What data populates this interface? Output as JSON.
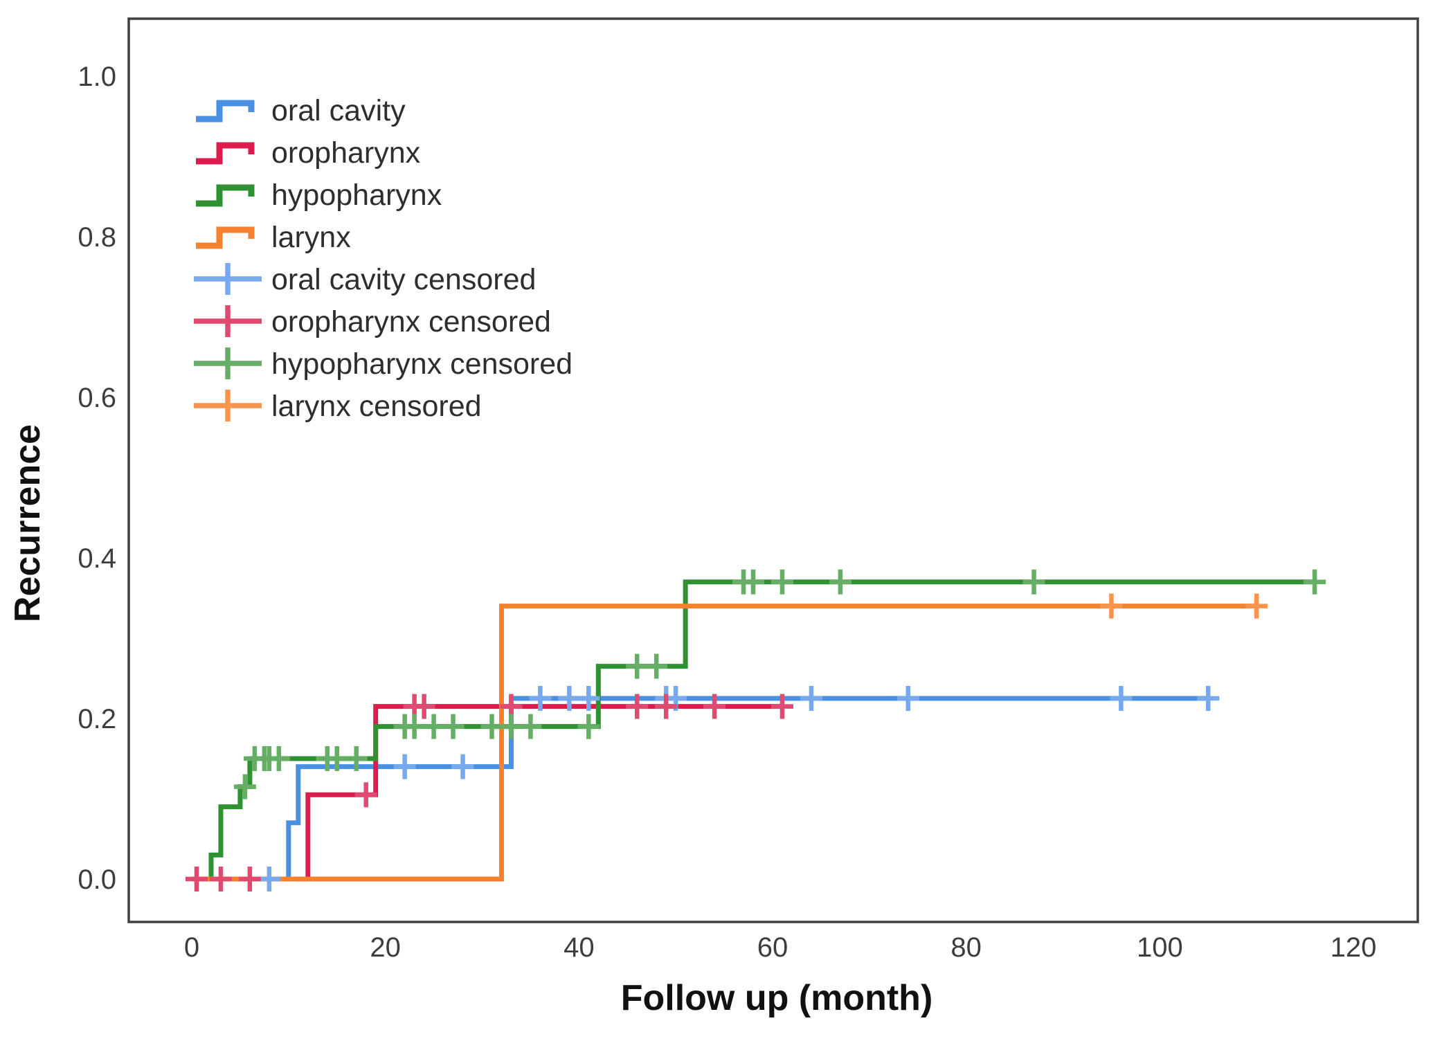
{
  "figure": {
    "background": "#ffffff",
    "frame_color": "#3f3f3f",
    "tick_label_color": "#3d3d3d",
    "legend_text_color": "#2e2e2e"
  },
  "chart_data": {
    "type": "line",
    "subtype": "kaplan-meier-cumulative-incidence-steps",
    "title": "",
    "xlabel": "Follow up (month)",
    "ylabel": "Recurrence",
    "xlim": [
      0,
      120
    ],
    "ylim": [
      0.0,
      1.0
    ],
    "xticks": [
      "0",
      "20",
      "40",
      "60",
      "80",
      "100",
      "120"
    ],
    "yticks": [
      "0.0",
      "0.2",
      "0.4",
      "0.6",
      "0.8",
      "1.0"
    ],
    "ytick_values": [
      0.0,
      0.2,
      0.4,
      0.6,
      0.8,
      1.0
    ],
    "xtick_values": [
      0,
      20,
      40,
      60,
      80,
      100,
      120
    ],
    "grid": false,
    "legend_position": "upper-left-inside",
    "series": [
      {
        "name": "oral cavity",
        "color": "#4a90e2",
        "censor_color": "#76a9ee",
        "steps": [
          [
            0,
            0
          ],
          [
            10,
            0.07
          ],
          [
            11,
            0.14
          ],
          [
            33,
            0.225
          ]
        ],
        "end_month": 105,
        "censored": [
          [
            8,
            0
          ],
          [
            22,
            0.14
          ],
          [
            28,
            0.14
          ],
          [
            36,
            0.225
          ],
          [
            39,
            0.225
          ],
          [
            41,
            0.225
          ],
          [
            49,
            0.225
          ],
          [
            50,
            0.225
          ],
          [
            64,
            0.225
          ],
          [
            74,
            0.225
          ],
          [
            96,
            0.225
          ],
          [
            105,
            0.225
          ]
        ]
      },
      {
        "name": "oropharynx",
        "color": "#dd1c4d",
        "censor_color": "#e04a70",
        "steps": [
          [
            0,
            0
          ],
          [
            12,
            0.105
          ],
          [
            19,
            0.215
          ]
        ],
        "end_month": 61,
        "censored": [
          [
            0.5,
            0
          ],
          [
            3,
            0
          ],
          [
            6,
            0
          ],
          [
            18,
            0.105
          ],
          [
            23,
            0.215
          ],
          [
            24,
            0.215
          ],
          [
            33,
            0.215
          ],
          [
            46,
            0.215
          ],
          [
            49,
            0.215
          ],
          [
            54,
            0.215
          ],
          [
            61,
            0.215
          ]
        ]
      },
      {
        "name": "hypopharynx",
        "color": "#2f9132",
        "censor_color": "#66ad66",
        "steps": [
          [
            0,
            0
          ],
          [
            2,
            0.03
          ],
          [
            3,
            0.09
          ],
          [
            5,
            0.115
          ],
          [
            6,
            0.15
          ],
          [
            19,
            0.19
          ],
          [
            42,
            0.265
          ],
          [
            51,
            0.37
          ]
        ],
        "end_month": 116,
        "censored": [
          [
            5.5,
            0.115
          ],
          [
            6.5,
            0.15
          ],
          [
            7.5,
            0.15
          ],
          [
            8,
            0.15
          ],
          [
            9,
            0.15
          ],
          [
            14,
            0.15
          ],
          [
            15,
            0.15
          ],
          [
            17,
            0.15
          ],
          [
            22,
            0.19
          ],
          [
            23,
            0.19
          ],
          [
            25,
            0.19
          ],
          [
            27,
            0.19
          ],
          [
            31,
            0.19
          ],
          [
            33,
            0.19
          ],
          [
            35,
            0.19
          ],
          [
            41,
            0.19
          ],
          [
            46,
            0.265
          ],
          [
            48,
            0.265
          ],
          [
            57,
            0.37
          ],
          [
            58,
            0.37
          ],
          [
            61,
            0.37
          ],
          [
            67,
            0.37
          ],
          [
            87,
            0.37
          ],
          [
            116,
            0.37
          ]
        ]
      },
      {
        "name": "larynx",
        "color": "#f5822f",
        "censor_color": "#f9944d",
        "steps": [
          [
            0,
            0
          ],
          [
            32,
            0.34
          ]
        ],
        "end_month": 110,
        "censored": [
          [
            95,
            0.34
          ],
          [
            110,
            0.34
          ]
        ]
      }
    ],
    "legend": [
      {
        "label": "oral cavity",
        "type": "line",
        "color": "#4a90e2"
      },
      {
        "label": "oropharynx",
        "type": "line",
        "color": "#dd1c4d"
      },
      {
        "label": "hypopharynx",
        "type": "line",
        "color": "#2f9132"
      },
      {
        "label": "larynx",
        "type": "line",
        "color": "#f5822f"
      },
      {
        "label": "oral cavity censored",
        "type": "censor",
        "color": "#76a9ee"
      },
      {
        "label": "oropharynx censored",
        "type": "censor",
        "color": "#e04a70"
      },
      {
        "label": "hypopharynx censored",
        "type": "censor",
        "color": "#66ad66"
      },
      {
        "label": "larynx censored",
        "type": "censor",
        "color": "#f9944d"
      }
    ]
  }
}
